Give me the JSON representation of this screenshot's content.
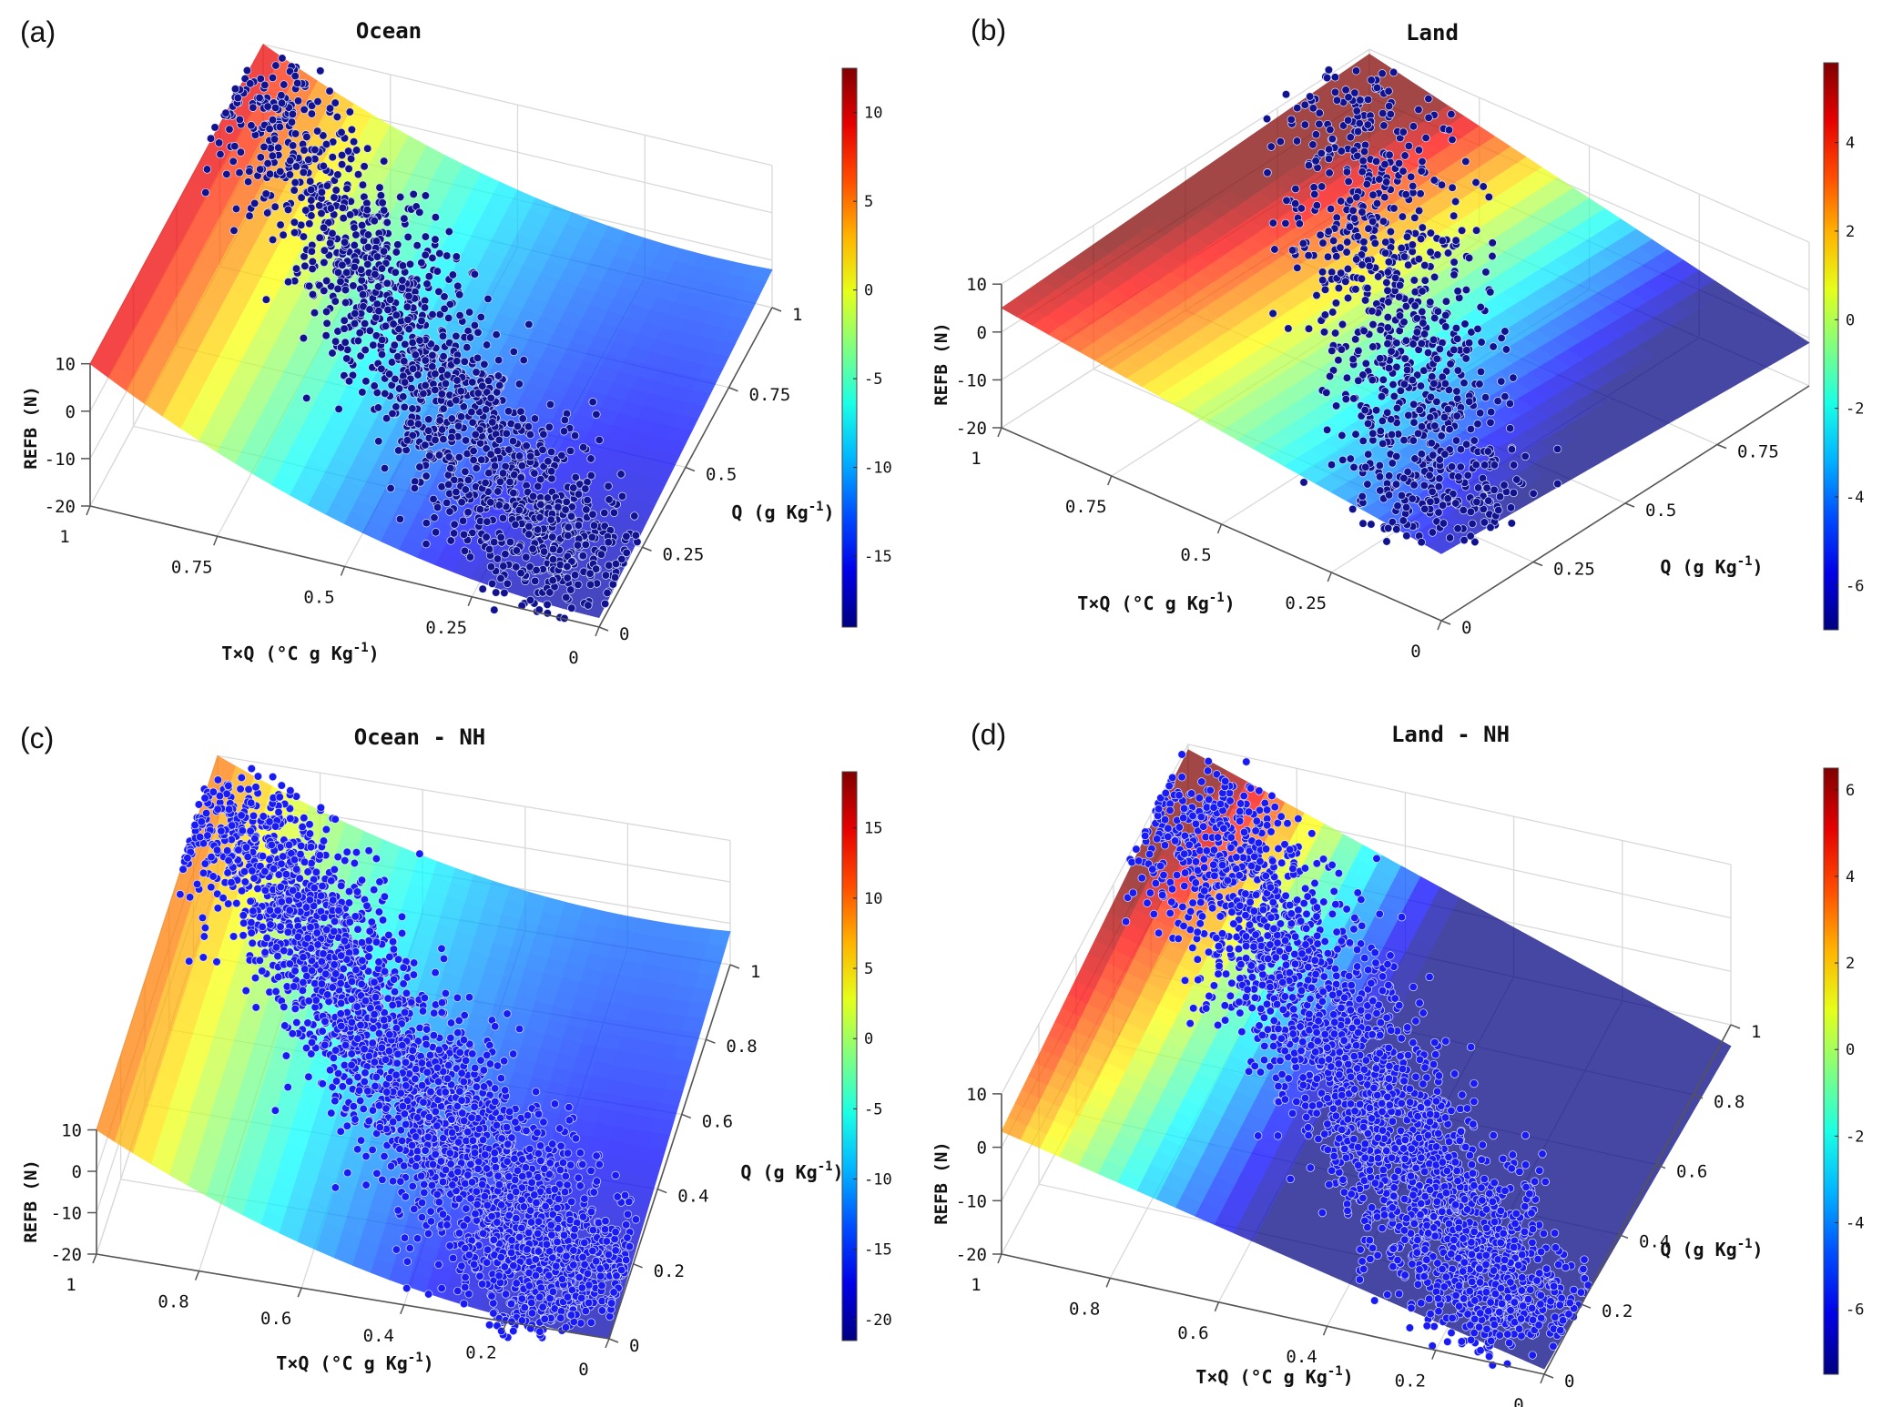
{
  "chart_data": [
    {
      "type": "surface+scatter",
      "panel_label": "(a)",
      "title": "Ocean",
      "xlabel": "T×Q (°C g Kg",
      "ylabel": "Q (g Kg",
      "unit_exp": "-1",
      "zlabel": "REFB (N)",
      "xticks": [
        "1",
        "0.75",
        "0.5",
        "0.25",
        "0"
      ],
      "xtick_values": [
        1,
        0.75,
        0.5,
        0.25,
        0
      ],
      "yticks": [
        "0",
        "0.25",
        "0.5",
        "0.75",
        "1"
      ],
      "ytick_values": [
        0,
        0.25,
        0.5,
        0.75,
        1
      ],
      "zticks": [
        "10",
        "0",
        "-10",
        "-20"
      ],
      "ztick_values": [
        10,
        0,
        -10,
        -20
      ],
      "zlim": [
        -20,
        10
      ],
      "colorbar": {
        "clim": [
          -19,
          12.5
        ],
        "ticks": [
          "10",
          "5",
          "0",
          "-5",
          "-10",
          "-15"
        ],
        "tick_values": [
          10,
          5,
          0,
          -5,
          -10,
          -15
        ]
      },
      "scatter_color": "#12128f",
      "scatter_count": 1500
    },
    {
      "type": "surface+scatter",
      "panel_label": "(b)",
      "title": "Land",
      "xlabel": "T×Q (°C g Kg",
      "ylabel": "Q (g Kg",
      "unit_exp": "-1",
      "zlabel": "REFB (N)",
      "xticks": [
        "1",
        "0.75",
        "0.5",
        "0.25",
        "0"
      ],
      "xtick_values": [
        1,
        0.75,
        0.5,
        0.25,
        0
      ],
      "yticks": [
        "0",
        "0.25",
        "0.5",
        "0.75"
      ],
      "ytick_values": [
        0,
        0.25,
        0.5,
        0.75
      ],
      "zticks": [
        "10",
        "0",
        "-10",
        "-20"
      ],
      "ztick_values": [
        10,
        0,
        -10,
        -20
      ],
      "zlim": [
        -20,
        10
      ],
      "colorbar": {
        "clim": [
          -7,
          5.8
        ],
        "ticks": [
          "4",
          "2",
          "0",
          "-2",
          "-4",
          "-6"
        ],
        "tick_values": [
          4,
          2,
          0,
          -2,
          -4,
          -6
        ]
      },
      "scatter_color": "#12128f",
      "scatter_count": 900
    },
    {
      "type": "surface+scatter",
      "panel_label": "(c)",
      "title": "Ocean - NH",
      "xlabel": "T×Q (°C g Kg",
      "ylabel": "Q (g Kg",
      "unit_exp": "-1",
      "zlabel": "REFB (N)",
      "xticks": [
        "1",
        "0.8",
        "0.6",
        "0.4",
        "0.2",
        "0"
      ],
      "xtick_values": [
        1,
        0.8,
        0.6,
        0.4,
        0.2,
        0
      ],
      "yticks": [
        "0",
        "0.2",
        "0.4",
        "0.6",
        "0.8",
        "1"
      ],
      "ytick_values": [
        0,
        0.2,
        0.4,
        0.6,
        0.8,
        1
      ],
      "zticks": [
        "10",
        "0",
        "-10",
        "-20"
      ],
      "ztick_values": [
        10,
        0,
        -10,
        -20
      ],
      "zlim": [
        -20,
        10
      ],
      "colorbar": {
        "clim": [
          -21.5,
          19
        ],
        "ticks": [
          "15",
          "10",
          "5",
          "0",
          "-5",
          "-10",
          "-15",
          "-20"
        ],
        "tick_values": [
          15,
          10,
          5,
          0,
          -5,
          -10,
          -15,
          -20
        ]
      },
      "scatter_color": "#1a1af5",
      "scatter_count": 3000
    },
    {
      "type": "surface+scatter",
      "panel_label": "(d)",
      "title": "Land - NH",
      "xlabel": "T×Q (°C g Kg",
      "ylabel": "Q (g Kg",
      "unit_exp": "-1",
      "zlabel": "REFB (N)",
      "xticks": [
        "1",
        "0.8",
        "0.6",
        "0.4",
        "0.2",
        "0"
      ],
      "xtick_values": [
        1,
        0.8,
        0.6,
        0.4,
        0.2,
        0
      ],
      "yticks": [
        "0",
        "0.2",
        "0.4",
        "0.6",
        "0.8",
        "1"
      ],
      "ytick_values": [
        0,
        0.2,
        0.4,
        0.6,
        0.8,
        1
      ],
      "zticks": [
        "10",
        "0",
        "-10",
        "-20"
      ],
      "ztick_values": [
        10,
        0,
        -10,
        -20
      ],
      "zlim": [
        -20,
        10
      ],
      "colorbar": {
        "clim": [
          -7.5,
          6.5
        ],
        "ticks": [
          "6",
          "4",
          "2",
          "0",
          "-2",
          "-4",
          "-6"
        ],
        "tick_values": [
          6,
          4,
          2,
          0,
          -2,
          -4,
          -6
        ]
      },
      "scatter_color": "#1a1af5",
      "scatter_count": 2500
    }
  ]
}
